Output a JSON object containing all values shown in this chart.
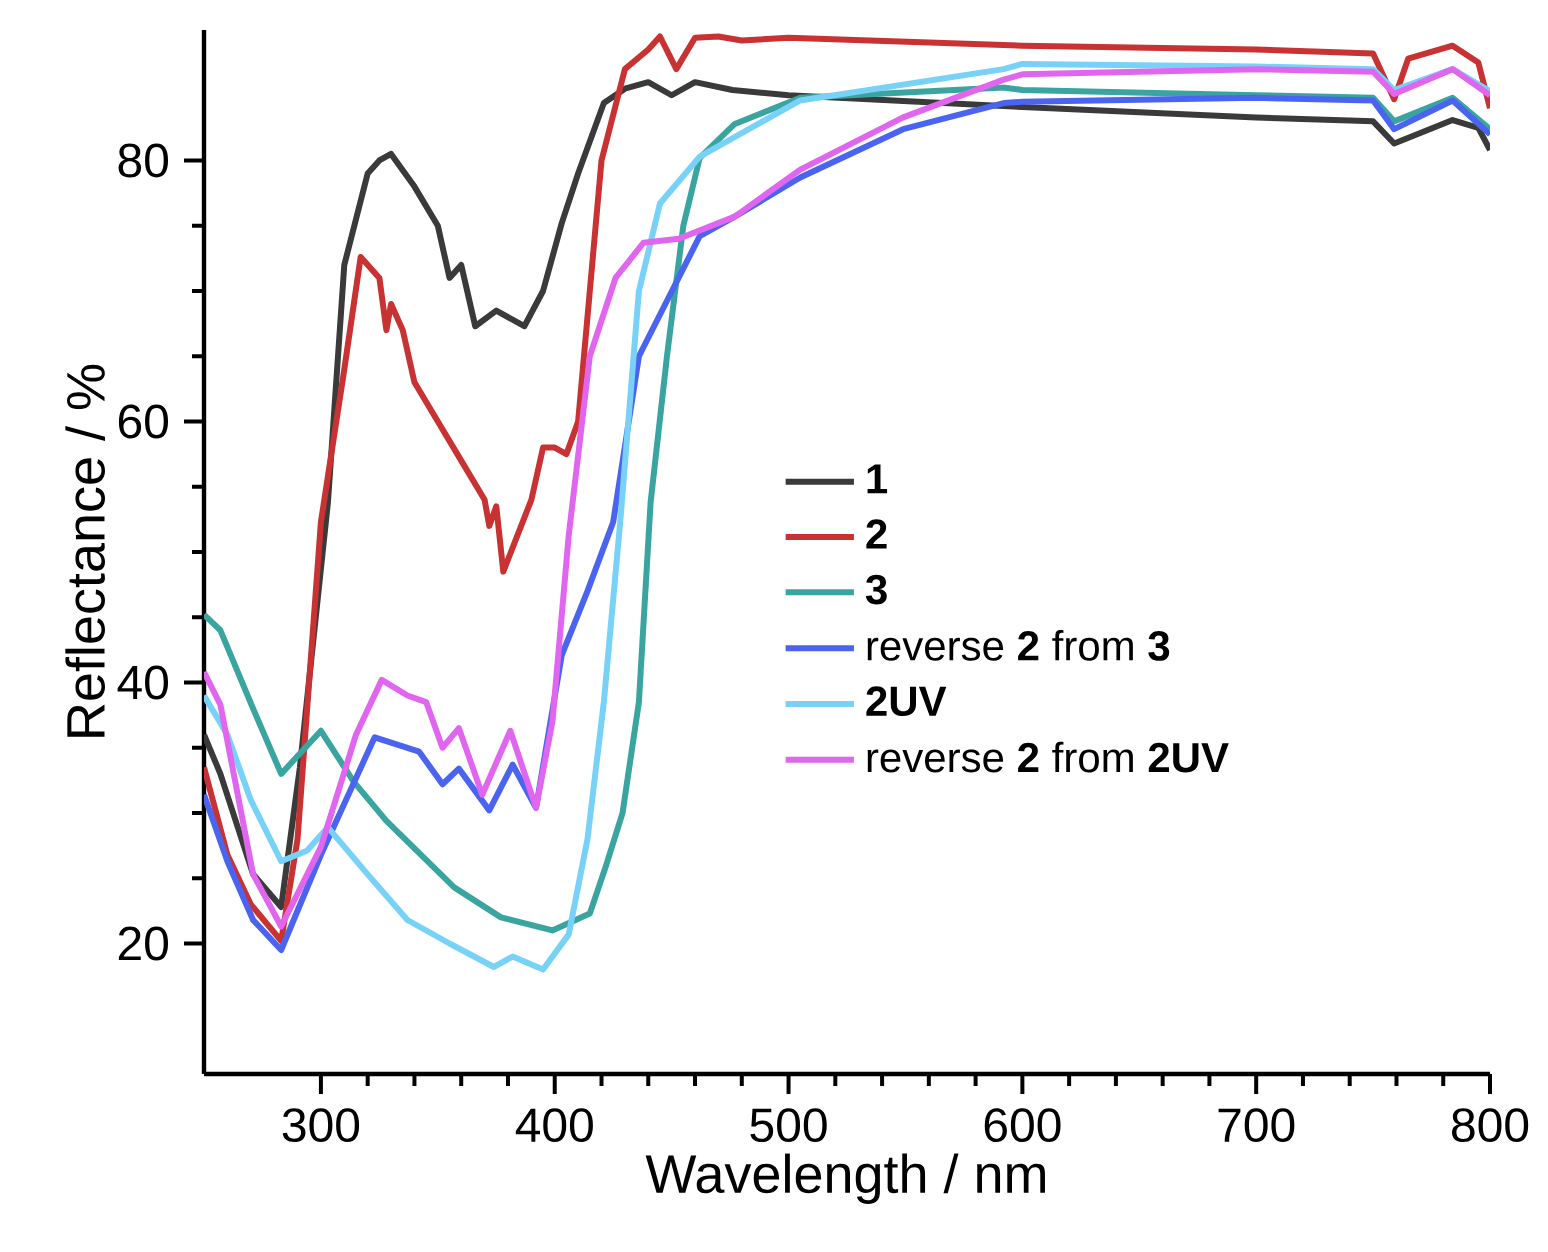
{
  "chart_data": {
    "type": "line",
    "xlabel": "Wavelength / nm",
    "ylabel": "Reflectance / %",
    "xlim": [
      250,
      800
    ],
    "xticks": [
      300,
      400,
      500,
      600,
      700,
      800
    ],
    "ylim": [
      10,
      90
    ],
    "yticks": [
      20,
      40,
      60,
      80
    ],
    "legend": "right",
    "grid": false,
    "line_style": "solid",
    "marker": "none",
    "series": [
      {
        "name": "1",
        "color": "#3a3a3a",
        "x": [
          250,
          257,
          271,
          283,
          291,
          303,
          310,
          320,
          325,
          330,
          340,
          350,
          355,
          360,
          366,
          375,
          387,
          395,
          403,
          410,
          421,
          430,
          440,
          450,
          460,
          476,
          500,
          600,
          700,
          750,
          759,
          784,
          795,
          800
        ],
        "values": [
          36,
          33,
          25.3,
          22.8,
          33.5,
          53.8,
          72,
          79,
          80,
          80.5,
          78,
          75,
          71,
          72,
          67.3,
          68.5,
          67.3,
          70,
          75.2,
          79,
          84.4,
          85.5,
          86,
          85,
          86,
          85.4,
          85,
          84.1,
          83.3,
          83,
          81.3,
          83.1,
          82.5,
          80.8
        ]
      },
      {
        "name": "2",
        "color": "#c83232",
        "x": [
          250,
          260,
          270,
          283,
          290,
          300,
          310,
          317,
          325,
          328,
          330,
          335,
          340,
          350,
          360,
          370,
          372,
          375,
          378,
          390,
          395,
          400,
          405,
          410,
          415,
          420,
          430,
          440,
          445,
          452,
          460,
          470,
          480,
          500,
          600,
          700,
          750,
          759,
          765,
          784,
          795,
          800
        ],
        "values": [
          33.5,
          26.8,
          23,
          20.2,
          28,
          52.3,
          64,
          72.6,
          71,
          67,
          69,
          67,
          63,
          60,
          57,
          54,
          52,
          53.5,
          48.5,
          54,
          58,
          58,
          57.5,
          60,
          70,
          80,
          87,
          88.5,
          89.5,
          87,
          89.4,
          89.5,
          89.2,
          89.4,
          88.8,
          88.5,
          88.2,
          84.7,
          87.8,
          88.8,
          87.5,
          84
        ]
      },
      {
        "name": "3",
        "color": "#3aa5a0",
        "x": [
          250,
          257,
          271,
          283,
          300,
          314,
          328,
          357,
          377,
          399,
          415,
          422,
          429,
          436,
          441,
          448,
          455,
          462,
          477,
          505,
          592,
          600,
          700,
          750,
          759,
          784,
          800
        ],
        "values": [
          45.2,
          44,
          38,
          33,
          36.3,
          32.4,
          29.4,
          24.3,
          22,
          21,
          22.3,
          26,
          30,
          38.5,
          53.8,
          65,
          75,
          80.2,
          82.8,
          84.8,
          85.6,
          85.4,
          85,
          84.8,
          83,
          84.8,
          82.4
        ]
      },
      {
        "name": "reverse **2** from **3**",
        "color": "#4a64f0",
        "x": [
          250,
          260,
          271,
          283,
          300,
          323,
          342,
          352,
          359,
          372,
          382,
          392,
          403,
          414,
          425,
          436,
          462,
          477,
          505,
          549,
          592,
          600,
          700,
          750,
          759,
          784,
          800
        ],
        "values": [
          31.4,
          26.3,
          21.8,
          19.5,
          26.8,
          35.8,
          34.7,
          32.2,
          33.4,
          30.2,
          33.7,
          30.4,
          42.1,
          47,
          52.3,
          65,
          74.2,
          75.7,
          78.7,
          82.4,
          84.4,
          84.5,
          84.8,
          84.6,
          82.4,
          84.6,
          82
        ]
      },
      {
        "name": "2UV",
        "color": "#78d2f8",
        "x": [
          250,
          260,
          270,
          283,
          294,
          303,
          320,
          337,
          355,
          374,
          382,
          395,
          406,
          414,
          421,
          428,
          436,
          445,
          462,
          505,
          592,
          600,
          700,
          750,
          759,
          784,
          800
        ],
        "values": [
          39,
          36,
          31,
          26.3,
          27.1,
          28.9,
          25.3,
          21.8,
          20,
          18.2,
          19,
          18,
          20.7,
          28,
          38.5,
          52.3,
          70,
          76.7,
          80.3,
          84.6,
          87,
          87.4,
          87.2,
          87,
          85.4,
          87,
          85.3
        ]
      },
      {
        "name": "reverse **2** from **2UV**",
        "color": "#e066f0",
        "x": [
          250,
          257,
          271,
          283,
          300,
          315,
          326,
          337,
          345,
          352,
          359,
          369,
          381,
          392,
          399,
          406,
          415,
          426,
          438,
          453,
          477,
          505,
          549,
          592,
          600,
          700,
          750,
          759,
          784,
          800
        ],
        "values": [
          40.8,
          38.3,
          25.3,
          21.3,
          27.4,
          36,
          40.2,
          39,
          38.5,
          35,
          36.5,
          31.4,
          36.3,
          30.4,
          37,
          51.3,
          65,
          71,
          73.7,
          74,
          75.7,
          79.3,
          83.3,
          86.2,
          86.6,
          87,
          86.8,
          85.1,
          87,
          85
        ]
      }
    ]
  }
}
